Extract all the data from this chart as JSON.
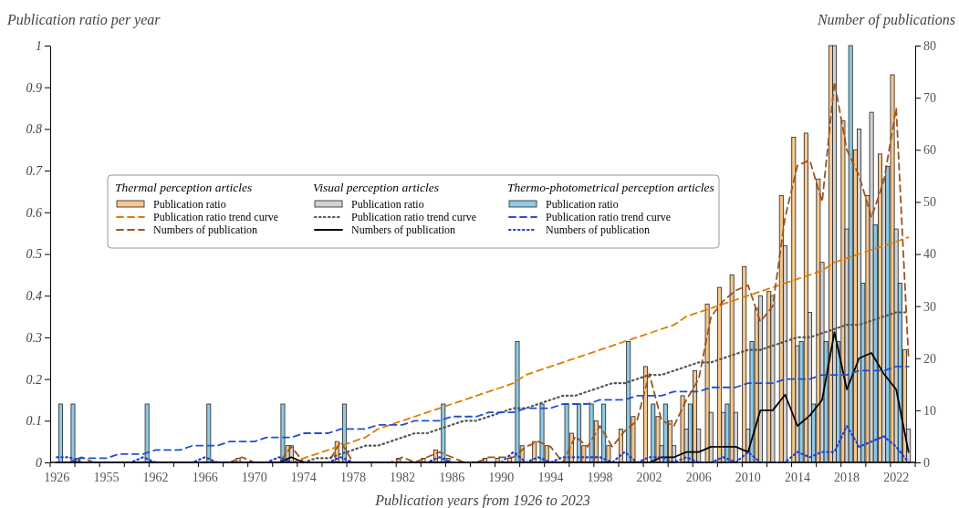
{
  "chart_data": {
    "type": "bar",
    "xlabel": "Publication years from 1926 to 2023",
    "ylabel": "Publication ratio per year",
    "y2label": "Number of publications",
    "annotations": [
      "Thermal perception articles",
      "Visual perception articles",
      "Thermo-photometrical perception articles"
    ],
    "categories": [
      "1926",
      null,
      null,
      null,
      "1955",
      null,
      null,
      null,
      "1962",
      null,
      null,
      null,
      "1966",
      null,
      null,
      null,
      "1970",
      null,
      null,
      null,
      "1974",
      null,
      null,
      null,
      "1978",
      null,
      null,
      null,
      "1982",
      null,
      null,
      null,
      "1986",
      null,
      null,
      null,
      "1990",
      null,
      null,
      null,
      "1994",
      null,
      null,
      null,
      "1998",
      null,
      null,
      null,
      "2002",
      null,
      null,
      null,
      "2006",
      null,
      null,
      null,
      "2010",
      null,
      null,
      null,
      "2014",
      null,
      null,
      null,
      "2018",
      null,
      null,
      null,
      "2022",
      null
    ],
    "ylim": [
      0,
      1
    ],
    "yticks": [
      0,
      0.1,
      0.2,
      0.3,
      0.4,
      0.5,
      0.6,
      0.7,
      0.8,
      0.9,
      1
    ],
    "y2lim": [
      0,
      80
    ],
    "y2ticks": [
      0,
      10,
      20,
      30,
      40,
      50,
      60,
      70,
      80
    ],
    "legend": "left",
    "series": [
      {
        "name": "Publication ratio",
        "color": "#f7c88c",
        "values": [
          0,
          0,
          0.01,
          0,
          0,
          0,
          0,
          0,
          0,
          0,
          0,
          0,
          0,
          0,
          0,
          0.01,
          0,
          0,
          0,
          0.04,
          0,
          0,
          0,
          0.05,
          0,
          0,
          0,
          0,
          0.01,
          0,
          0.01,
          0.03,
          0.01,
          0,
          0,
          0.01,
          0.01,
          0.01,
          0.04,
          0.05,
          0.04,
          0,
          0.07,
          0.04,
          0.1,
          0.04,
          0.08,
          0.11,
          0.23,
          0.11,
          0.1,
          0.16,
          0.22,
          0.38,
          0.42,
          0.45,
          0.47,
          0.37,
          0.41,
          0.64,
          0.78,
          0.79,
          0.68,
          1,
          0.82,
          0.75,
          0.64,
          0.74,
          0.93,
          0.27
        ]
      },
      {
        "type": "line",
        "name": "Publication ratio trend curve",
        "color": "#e07b00",
        "line_style": "dashed",
        "values": [
          null,
          null,
          null,
          null,
          null,
          null,
          null,
          null,
          null,
          null,
          null,
          null,
          null,
          null,
          null,
          null,
          null,
          null,
          null,
          0,
          0.01,
          0.02,
          0.03,
          0.04,
          0.05,
          0.06,
          0.08,
          0.09,
          0.1,
          0.11,
          0.12,
          0.13,
          0.14,
          0.15,
          0.16,
          0.17,
          0.18,
          0.19,
          0.21,
          0.22,
          0.23,
          0.24,
          0.25,
          0.26,
          0.27,
          0.28,
          0.29,
          0.3,
          0.31,
          0.32,
          0.33,
          0.35,
          0.36,
          0.37,
          0.38,
          0.39,
          0.4,
          0.41,
          0.42,
          0.43,
          0.44,
          0.45,
          0.46,
          0.48,
          0.49,
          0.5,
          0.51,
          0.52,
          0.53,
          0.54
        ]
      },
      {
        "type": "line",
        "name": "Numbers of publication",
        "color": "#a0521d",
        "line_style": "dashed",
        "axis": "y2",
        "values": [
          0,
          0,
          1,
          0,
          0,
          0,
          0,
          0,
          0,
          0,
          0,
          0,
          0,
          0,
          0,
          1,
          0,
          0,
          0,
          3,
          0,
          0,
          0,
          4,
          0,
          0,
          0,
          0,
          1,
          0,
          1,
          2,
          1,
          0,
          0,
          1,
          1,
          1,
          3,
          4,
          3,
          0,
          5,
          3,
          7,
          3,
          6,
          8,
          17,
          8,
          7,
          12,
          16,
          28,
          31,
          33,
          34,
          27,
          30,
          47,
          57,
          58,
          50,
          73,
          60,
          55,
          47,
          54,
          68,
          20
        ]
      },
      {
        "name": "Publication ratio",
        "color": "#d2d2d2",
        "values": [
          0,
          0,
          0,
          0,
          0,
          0,
          0,
          0,
          0,
          0,
          0,
          0,
          0,
          0,
          0,
          0,
          0,
          0,
          0,
          0.04,
          0,
          0,
          0,
          0,
          0,
          0,
          0,
          0,
          0,
          0,
          0,
          0,
          0,
          0,
          0,
          0,
          0,
          0,
          0,
          0,
          0,
          0,
          0,
          0,
          0,
          0,
          0,
          0,
          0,
          0.04,
          0.04,
          0.08,
          0.08,
          0.12,
          0.12,
          0.12,
          0.08,
          0.4,
          0.4,
          0.52,
          0.28,
          0.36,
          0.48,
          1,
          0.56,
          0.8,
          0.84,
          0.68,
          0.56,
          0.08
        ]
      },
      {
        "type": "line",
        "name": "Publication ratio trend curve",
        "color": "#555555",
        "line_style": "dotted",
        "values": [
          null,
          null,
          null,
          null,
          null,
          null,
          null,
          null,
          null,
          null,
          null,
          null,
          null,
          null,
          null,
          null,
          null,
          null,
          null,
          null,
          0,
          0.01,
          0.01,
          0.02,
          0.03,
          0.04,
          0.04,
          0.05,
          0.06,
          0.07,
          0.07,
          0.08,
          0.09,
          0.1,
          0.1,
          0.11,
          0.12,
          0.13,
          0.13,
          0.14,
          0.15,
          0.16,
          0.16,
          0.17,
          0.18,
          0.19,
          0.19,
          0.2,
          0.21,
          0.21,
          0.22,
          0.23,
          0.24,
          0.24,
          0.25,
          0.26,
          0.27,
          0.27,
          0.28,
          0.29,
          0.3,
          0.3,
          0.31,
          0.32,
          0.33,
          0.33,
          0.34,
          0.35,
          0.36,
          0.36
        ]
      },
      {
        "type": "line",
        "name": "Numbers of publication",
        "color": "#000000",
        "line_style": "solid",
        "axis": "y2",
        "values": [
          0,
          0,
          0,
          0,
          0,
          0,
          0,
          0,
          0,
          0,
          0,
          0,
          0,
          0,
          0,
          0,
          0,
          0,
          0,
          1,
          0,
          0,
          0,
          0,
          0,
          0,
          0,
          0,
          0,
          0,
          0,
          0,
          0,
          0,
          0,
          0,
          0,
          0,
          0,
          0,
          0,
          0,
          0,
          0,
          0,
          0,
          0,
          0,
          0,
          1,
          1,
          2,
          2,
          3,
          3,
          3,
          2,
          10,
          10,
          13,
          7,
          9,
          12,
          25,
          14,
          20,
          21,
          17,
          14,
          2
        ]
      },
      {
        "name": "Publication ratio",
        "color": "#8ecae6",
        "values": [
          0.14,
          0.14,
          0,
          0,
          0,
          0,
          0,
          0.14,
          0,
          0,
          0,
          0,
          0.14,
          0,
          0,
          0,
          0,
          0,
          0.14,
          0,
          0,
          0,
          0,
          0.14,
          0,
          0,
          0,
          0,
          0,
          0,
          0,
          0.14,
          0,
          0,
          0,
          0,
          0,
          0.29,
          0,
          0.14,
          0,
          0.14,
          0.14,
          0.14,
          0.14,
          0,
          0.29,
          0,
          0.14,
          0.14,
          0,
          0.14,
          0,
          0,
          0.14,
          0,
          0.29,
          0,
          0,
          0,
          0.29,
          0.14,
          0.29,
          0.29,
          1,
          0.43,
          0.57,
          0.71,
          0.43,
          0
        ]
      },
      {
        "type": "line",
        "name": "Publication ratio trend curve",
        "color": "#1f4fd6",
        "line_style": "dashed",
        "values": [
          0,
          0,
          0.01,
          0.01,
          0.01,
          0.02,
          0.02,
          0.02,
          0.03,
          0.03,
          0.03,
          0.04,
          0.04,
          0.04,
          0.05,
          0.05,
          0.05,
          0.06,
          0.06,
          0.06,
          0.07,
          0.07,
          0.07,
          0.08,
          0.08,
          0.08,
          0.09,
          0.09,
          0.09,
          0.1,
          0.1,
          0.1,
          0.11,
          0.11,
          0.11,
          0.12,
          0.12,
          0.12,
          0.13,
          0.13,
          0.13,
          0.14,
          0.14,
          0.14,
          0.15,
          0.15,
          0.15,
          0.16,
          0.16,
          0.16,
          0.17,
          0.17,
          0.17,
          0.18,
          0.18,
          0.18,
          0.19,
          0.19,
          0.19,
          0.2,
          0.2,
          0.2,
          0.21,
          0.21,
          0.21,
          0.22,
          0.22,
          0.22,
          0.23,
          0.23
        ]
      },
      {
        "type": "line",
        "name": "Numbers of publication",
        "color": "#1a3fe0",
        "line_style": "dotted",
        "axis": "y2",
        "values": [
          1,
          1,
          0,
          0,
          0,
          0,
          0,
          1,
          0,
          0,
          0,
          0,
          1,
          0,
          0,
          0,
          0,
          0,
          1,
          0,
          0,
          0,
          0,
          1,
          0,
          0,
          0,
          0,
          0,
          0,
          0,
          1,
          0,
          0,
          0,
          0,
          0,
          2,
          0,
          1,
          0,
          1,
          1,
          1,
          1,
          0,
          2,
          0,
          1,
          1,
          0,
          1,
          0,
          0,
          1,
          0,
          2,
          0,
          0,
          0,
          2,
          1,
          2,
          2,
          7,
          3,
          4,
          5,
          3,
          0
        ]
      }
    ]
  }
}
